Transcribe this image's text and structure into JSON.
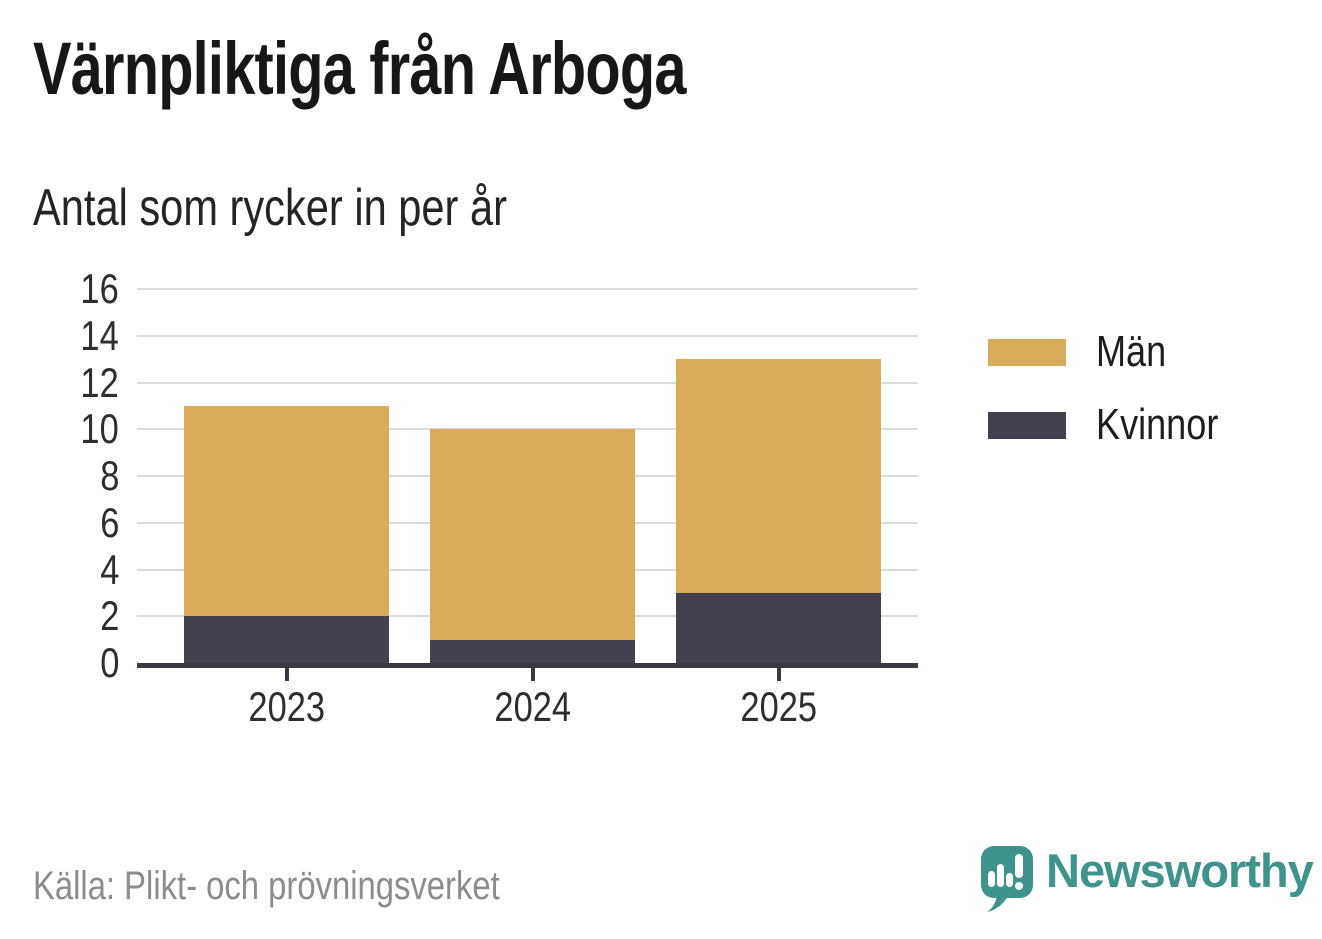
{
  "title": "Värnpliktiga från Arboga",
  "subtitle": "Antal som rycker in per år",
  "source": "Källa: Plikt- och prövningsverket",
  "brand": {
    "name": "Newsworthy",
    "color": "#3E948D",
    "icon": "newsworthy-speech-bubble-barchart-icon"
  },
  "chart_data": {
    "type": "bar",
    "stacked": true,
    "title": "Värnpliktiga från Arboga",
    "subtitle": "Antal som rycker in per år",
    "categories": [
      "2023",
      "2024",
      "2025"
    ],
    "series": [
      {
        "name": "Män",
        "color": "#D9AC5B",
        "values": [
          9,
          9,
          10
        ]
      },
      {
        "name": "Kvinnor",
        "color": "#434050",
        "values": [
          2,
          1,
          3
        ]
      }
    ],
    "stack_order_bottom_to_top": [
      "Kvinnor",
      "Män"
    ],
    "totals": [
      11,
      10,
      13
    ],
    "xlabel": "",
    "ylabel": "",
    "ylim": [
      0,
      16
    ],
    "yticks": [
      0,
      2,
      4,
      6,
      8,
      10,
      12,
      14,
      16
    ],
    "grid": "horizontal",
    "legend_position": "right"
  },
  "colors": {
    "grid": "#DBDBDB",
    "axis": "#3A3843",
    "tick_text": "#2E2E2E",
    "muted_text": "#8C8C8C"
  }
}
